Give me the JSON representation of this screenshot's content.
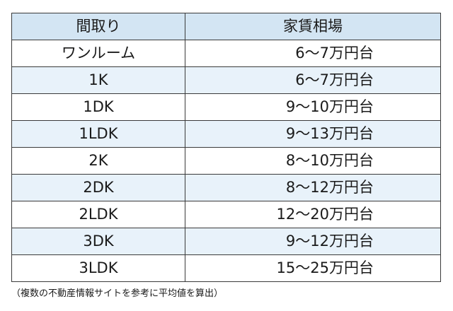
{
  "table": {
    "headers": {
      "layout": "間取り",
      "rent": "家賃相場"
    },
    "rows": [
      {
        "layout": "ワンルーム",
        "rent": "6～7万円台"
      },
      {
        "layout": "1K",
        "rent": "6～7万円台"
      },
      {
        "layout": "1DK",
        "rent": "9～10万円台"
      },
      {
        "layout": "1LDK",
        "rent": "9～13万円台"
      },
      {
        "layout": "2K",
        "rent": "8～10万円台"
      },
      {
        "layout": "2DK",
        "rent": "8～12万円台"
      },
      {
        "layout": "2LDK",
        "rent": "12～20万円台"
      },
      {
        "layout": "3DK",
        "rent": "9～12万円台"
      },
      {
        "layout": "3LDK",
        "rent": "15～25万円台"
      }
    ]
  },
  "footnote": "（複数の不動産情報サイトを参考に平均値を算出）",
  "colors": {
    "header_bg": "#d3e5f3",
    "stripe_bg": "#e8f2fa",
    "border": "#3a3a3a"
  }
}
